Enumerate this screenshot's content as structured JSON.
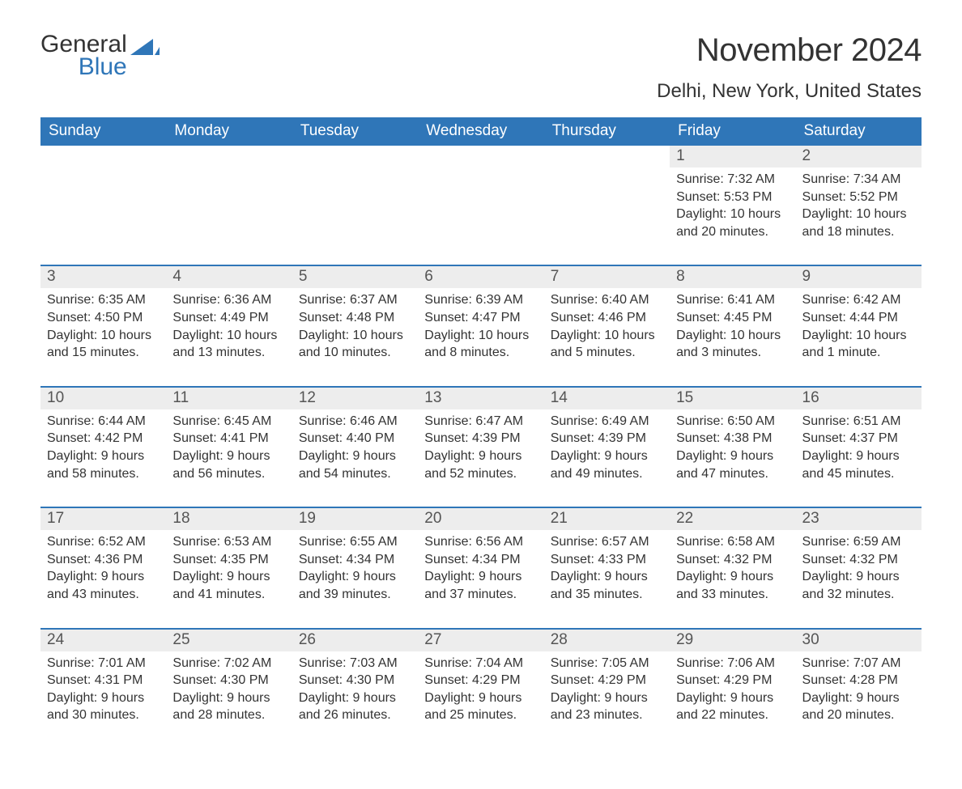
{
  "brand": {
    "name1": "General",
    "name2": "Blue",
    "icon_color": "#2f76b8"
  },
  "header": {
    "title": "November 2024",
    "location": "Delhi, New York, United States"
  },
  "colors": {
    "header_bg": "#2f76b8",
    "header_text": "#ffffff",
    "daynum_bg": "#ededed",
    "row_border": "#2f76b8",
    "text": "#333333",
    "background": "#ffffff"
  },
  "daysOfWeek": [
    "Sunday",
    "Monday",
    "Tuesday",
    "Wednesday",
    "Thursday",
    "Friday",
    "Saturday"
  ],
  "weeks": [
    [
      null,
      null,
      null,
      null,
      null,
      {
        "day": 1,
        "sunrise": "7:32 AM",
        "sunset": "5:53 PM",
        "daylight": "10 hours and 20 minutes."
      },
      {
        "day": 2,
        "sunrise": "7:34 AM",
        "sunset": "5:52 PM",
        "daylight": "10 hours and 18 minutes."
      }
    ],
    [
      {
        "day": 3,
        "sunrise": "6:35 AM",
        "sunset": "4:50 PM",
        "daylight": "10 hours and 15 minutes."
      },
      {
        "day": 4,
        "sunrise": "6:36 AM",
        "sunset": "4:49 PM",
        "daylight": "10 hours and 13 minutes."
      },
      {
        "day": 5,
        "sunrise": "6:37 AM",
        "sunset": "4:48 PM",
        "daylight": "10 hours and 10 minutes."
      },
      {
        "day": 6,
        "sunrise": "6:39 AM",
        "sunset": "4:47 PM",
        "daylight": "10 hours and 8 minutes."
      },
      {
        "day": 7,
        "sunrise": "6:40 AM",
        "sunset": "4:46 PM",
        "daylight": "10 hours and 5 minutes."
      },
      {
        "day": 8,
        "sunrise": "6:41 AM",
        "sunset": "4:45 PM",
        "daylight": "10 hours and 3 minutes."
      },
      {
        "day": 9,
        "sunrise": "6:42 AM",
        "sunset": "4:44 PM",
        "daylight": "10 hours and 1 minute."
      }
    ],
    [
      {
        "day": 10,
        "sunrise": "6:44 AM",
        "sunset": "4:42 PM",
        "daylight": "9 hours and 58 minutes."
      },
      {
        "day": 11,
        "sunrise": "6:45 AM",
        "sunset": "4:41 PM",
        "daylight": "9 hours and 56 minutes."
      },
      {
        "day": 12,
        "sunrise": "6:46 AM",
        "sunset": "4:40 PM",
        "daylight": "9 hours and 54 minutes."
      },
      {
        "day": 13,
        "sunrise": "6:47 AM",
        "sunset": "4:39 PM",
        "daylight": "9 hours and 52 minutes."
      },
      {
        "day": 14,
        "sunrise": "6:49 AM",
        "sunset": "4:39 PM",
        "daylight": "9 hours and 49 minutes."
      },
      {
        "day": 15,
        "sunrise": "6:50 AM",
        "sunset": "4:38 PM",
        "daylight": "9 hours and 47 minutes."
      },
      {
        "day": 16,
        "sunrise": "6:51 AM",
        "sunset": "4:37 PM",
        "daylight": "9 hours and 45 minutes."
      }
    ],
    [
      {
        "day": 17,
        "sunrise": "6:52 AM",
        "sunset": "4:36 PM",
        "daylight": "9 hours and 43 minutes."
      },
      {
        "day": 18,
        "sunrise": "6:53 AM",
        "sunset": "4:35 PM",
        "daylight": "9 hours and 41 minutes."
      },
      {
        "day": 19,
        "sunrise": "6:55 AM",
        "sunset": "4:34 PM",
        "daylight": "9 hours and 39 minutes."
      },
      {
        "day": 20,
        "sunrise": "6:56 AM",
        "sunset": "4:34 PM",
        "daylight": "9 hours and 37 minutes."
      },
      {
        "day": 21,
        "sunrise": "6:57 AM",
        "sunset": "4:33 PM",
        "daylight": "9 hours and 35 minutes."
      },
      {
        "day": 22,
        "sunrise": "6:58 AM",
        "sunset": "4:32 PM",
        "daylight": "9 hours and 33 minutes."
      },
      {
        "day": 23,
        "sunrise": "6:59 AM",
        "sunset": "4:32 PM",
        "daylight": "9 hours and 32 minutes."
      }
    ],
    [
      {
        "day": 24,
        "sunrise": "7:01 AM",
        "sunset": "4:31 PM",
        "daylight": "9 hours and 30 minutes."
      },
      {
        "day": 25,
        "sunrise": "7:02 AM",
        "sunset": "4:30 PM",
        "daylight": "9 hours and 28 minutes."
      },
      {
        "day": 26,
        "sunrise": "7:03 AM",
        "sunset": "4:30 PM",
        "daylight": "9 hours and 26 minutes."
      },
      {
        "day": 27,
        "sunrise": "7:04 AM",
        "sunset": "4:29 PM",
        "daylight": "9 hours and 25 minutes."
      },
      {
        "day": 28,
        "sunrise": "7:05 AM",
        "sunset": "4:29 PM",
        "daylight": "9 hours and 23 minutes."
      },
      {
        "day": 29,
        "sunrise": "7:06 AM",
        "sunset": "4:29 PM",
        "daylight": "9 hours and 22 minutes."
      },
      {
        "day": 30,
        "sunrise": "7:07 AM",
        "sunset": "4:28 PM",
        "daylight": "9 hours and 20 minutes."
      }
    ]
  ],
  "labels": {
    "sunrise": "Sunrise:",
    "sunset": "Sunset:",
    "daylight": "Daylight:"
  }
}
